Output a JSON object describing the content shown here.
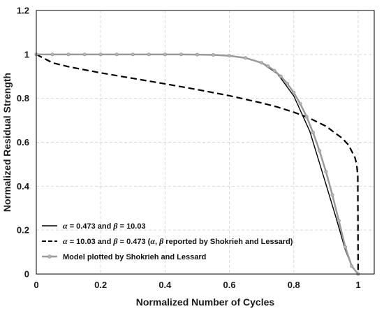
{
  "chart_data": {
    "type": "line",
    "title": "",
    "xlabel": "Normalized Number of Cycles",
    "ylabel": "Normalized Residual Strength",
    "xlim": [
      0,
      1.05
    ],
    "ylim": [
      0,
      1.2
    ],
    "x_ticks": [
      "0",
      "0.2",
      "0.4",
      "0.6",
      "0.8",
      "1"
    ],
    "y_ticks": [
      "0",
      "0.2",
      "0.4",
      "0.6",
      "0.8",
      "1",
      "1.2"
    ],
    "grid": "dashed",
    "legend_position": "bottom-left",
    "legend": [
      {
        "style": "solid",
        "parts": [
          {
            "t": "α",
            "i": true
          },
          {
            "t": " = 0.473 and "
          },
          {
            "t": "β",
            "i": true
          },
          {
            "t": " = 10.03"
          }
        ]
      },
      {
        "style": "dashed",
        "parts": [
          {
            "t": "α",
            "i": true
          },
          {
            "t": " = 10.03 and "
          },
          {
            "t": "β",
            "i": true
          },
          {
            "t": " = 0.473 ("
          },
          {
            "t": "α",
            "i": true
          },
          {
            "t": ", "
          },
          {
            "t": "β",
            "i": true
          },
          {
            "t": " reported by Shokrieh and Lessard)"
          }
        ]
      },
      {
        "style": "marker",
        "parts": [
          {
            "t": "Model plotted by Shokrieh and Lessard"
          }
        ]
      }
    ],
    "series": [
      {
        "style": "solid",
        "color": "#000000",
        "x": [
          0,
          0.1,
          0.2,
          0.3,
          0.4,
          0.5,
          0.55,
          0.6,
          0.65,
          0.7,
          0.75,
          0.8,
          0.85,
          0.9,
          0.93,
          0.96,
          0.98,
          1.0
        ],
        "y": [
          1.0,
          1.0,
          1.0,
          1.0,
          1.0,
          0.999,
          0.998,
          0.994,
          0.984,
          0.962,
          0.911,
          0.811,
          0.649,
          0.409,
          0.263,
          0.111,
          0.036,
          0.0
        ]
      },
      {
        "style": "dashed",
        "color": "#000000",
        "x": [
          0,
          0.05,
          0.1,
          0.2,
          0.3,
          0.4,
          0.5,
          0.6,
          0.7,
          0.75,
          0.8,
          0.85,
          0.9,
          0.95,
          0.97,
          0.99,
          0.995,
          0.999,
          1.0
        ],
        "y": [
          1.0,
          0.962,
          0.944,
          0.916,
          0.891,
          0.866,
          0.84,
          0.812,
          0.779,
          0.76,
          0.737,
          0.709,
          0.673,
          0.619,
          0.588,
          0.531,
          0.503,
          0.447,
          0.0
        ]
      },
      {
        "style": "marker",
        "color": "#9a9a9a",
        "x": [
          0,
          0.05,
          0.1,
          0.15,
          0.2,
          0.25,
          0.3,
          0.35,
          0.4,
          0.45,
          0.5,
          0.55,
          0.6,
          0.65,
          0.7,
          0.72,
          0.74,
          0.76,
          0.78,
          0.8,
          0.82,
          0.84,
          0.86,
          0.88,
          0.9,
          0.92,
          0.94,
          0.96,
          0.98,
          1.0
        ],
        "y": [
          1.0,
          1.0,
          1.0,
          1.0,
          1.0,
          1.0,
          1.0,
          1.0,
          1.0,
          1.0,
          0.999,
          0.998,
          0.994,
          0.984,
          0.962,
          0.946,
          0.926,
          0.9,
          0.867,
          0.826,
          0.776,
          0.716,
          0.644,
          0.561,
          0.466,
          0.36,
          0.243,
          0.123,
          0.036,
          0.0
        ]
      }
    ]
  }
}
